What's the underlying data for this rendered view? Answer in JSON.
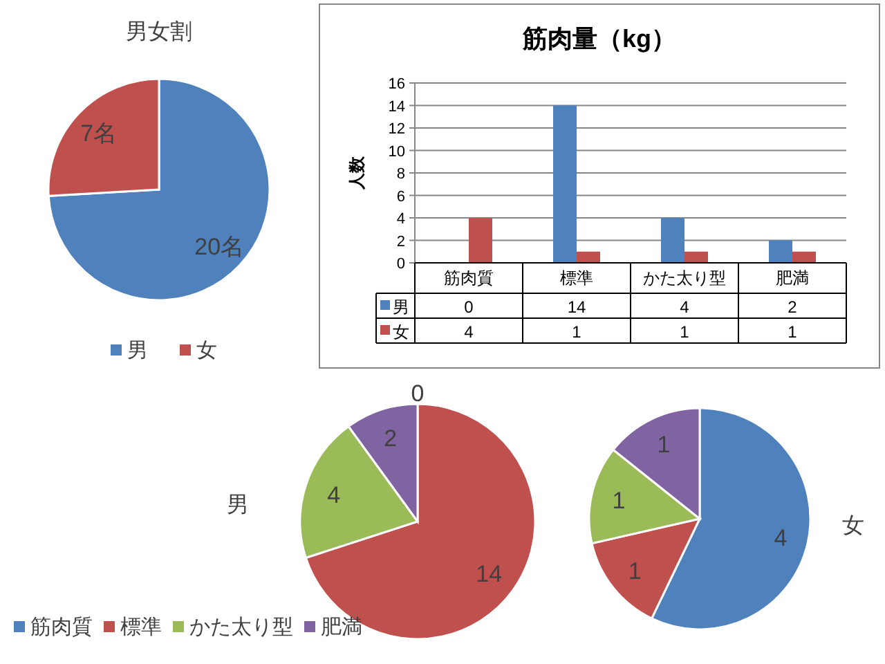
{
  "chart_data": [
    {
      "type": "pie",
      "title": "男女割",
      "categories": [
        "男",
        "女"
      ],
      "values": [
        20,
        7
      ],
      "value_labels": [
        "20名",
        "7名"
      ],
      "colors": [
        "#4f81bd",
        "#c0504d"
      ],
      "legend": "bottom"
    },
    {
      "type": "bar",
      "title": "筋肉量（kg）",
      "ylabel": "人数",
      "categories": [
        "筋肉質",
        "標準",
        "かた太り型",
        "肥満"
      ],
      "series": [
        {
          "name": "男",
          "color": "#4f81bd",
          "values": [
            0,
            14,
            4,
            2
          ]
        },
        {
          "name": "女",
          "color": "#c0504d",
          "values": [
            4,
            1,
            1,
            1
          ]
        }
      ],
      "ylim": [
        0,
        16
      ],
      "yticks": [
        0,
        2,
        4,
        6,
        8,
        10,
        12,
        14,
        16
      ],
      "grid": "y",
      "data_labels": true,
      "legend": "bottom"
    },
    {
      "type": "pie",
      "title": "男",
      "categories": [
        "筋肉質",
        "標準",
        "かた太り型",
        "肥満"
      ],
      "values": [
        0,
        14,
        4,
        2
      ],
      "value_labels": [
        "0",
        "14",
        "4",
        "2"
      ],
      "colors": [
        "#4f81bd",
        "#c0504d",
        "#9bbb59",
        "#8064a2"
      ],
      "legend": "bottom"
    },
    {
      "type": "pie",
      "title": "女",
      "categories": [
        null,
        null,
        null,
        null
      ],
      "values": [
        4,
        1,
        1,
        1
      ],
      "colors": [
        "#4f81bd",
        "#c0504d",
        "#9bbb59",
        "#8064a2"
      ],
      "data_labels": true
    }
  ]
}
